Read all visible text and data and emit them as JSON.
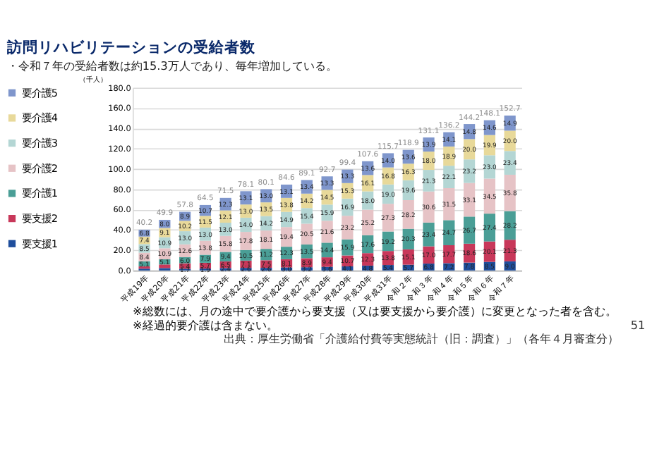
{
  "chart_data": {
    "type": "bar",
    "stacked": true,
    "title": "訪問リハビリテーションの受給者数",
    "subtitle": "・令和７年の受給者数は約15.3万人であり、毎年増加している。",
    "ylabel": "（千人）",
    "categories": [
      "平成19年",
      "平成20年",
      "平成21年",
      "平成22年",
      "平成23年",
      "平成24年",
      "平成25年",
      "平成26年",
      "平成27年",
      "平成28年",
      "平成29年",
      "平成30年",
      "平成31年",
      "令和２年",
      "令和３年",
      "令和４年",
      "令和５年",
      "令和６年",
      "令和７年"
    ],
    "series": [
      {
        "name": "要支援1",
        "color": "#1f4e9c",
        "values": [
          1.8,
          2.4,
          1.7,
          1.9,
          2.4,
          2.6,
          2.6,
          3.0,
          3.2,
          3.6,
          4.1,
          4.8,
          5.4,
          5.7,
          6.8,
          7.2,
          7.8,
          8.5,
          9.0
        ],
        "value_labels": [
          null,
          null,
          "1.7",
          "1.9",
          "2.4",
          "2.6",
          "2.6",
          "3.0",
          "3.2",
          "3.6",
          "4.1",
          "4.8",
          "5.4",
          "5.7",
          "6.8",
          "7.2",
          "7.8",
          "8.5",
          "9.0"
        ]
      },
      {
        "name": "要支援2",
        "color": "#c8385a",
        "values": [
          2.2,
          3.5,
          5.4,
          5.7,
          6.5,
          7.1,
          7.5,
          8.1,
          8.9,
          9.4,
          10.7,
          12.3,
          13.8,
          15.1,
          17.0,
          17.7,
          18.6,
          20.1,
          21.3
        ],
        "value_labels": [
          null,
          null,
          "5.4",
          "5.7",
          "6.5",
          "7.1",
          "7.5",
          "8.1",
          "8.9",
          "9.4",
          "10.7",
          "12.3",
          "13.8",
          "15.1",
          "17.0",
          "17.7",
          "18.6",
          "20.1",
          "21.3"
        ]
      },
      {
        "name": "要介護1",
        "color": "#4a9e96",
        "values": [
          5.1,
          5.1,
          6.0,
          7.9,
          9.4,
          10.5,
          11.2,
          12.3,
          13.5,
          14.4,
          15.9,
          17.6,
          19.2,
          20.3,
          23.4,
          24.7,
          26.7,
          27.4,
          28.2
        ],
        "value_labels": [
          "5.1",
          "5.1",
          "6.0",
          "7.9",
          "9.4",
          "10.5",
          "11.2",
          "12.3",
          "13.5",
          "14.4",
          "15.9",
          "17.6",
          "19.2",
          "20.3",
          "23.4",
          "24.7",
          "26.7",
          "27.4",
          "28.2"
        ]
      },
      {
        "name": "要介護2",
        "color": "#e6c3c6",
        "values": [
          8.4,
          10.9,
          12.6,
          13.8,
          15.8,
          17.8,
          18.1,
          19.4,
          20.5,
          21.6,
          23.2,
          25.2,
          27.3,
          28.2,
          30.6,
          31.5,
          33.1,
          34.5,
          35.8
        ],
        "value_labels": [
          "8.4",
          "10.9",
          "12.6",
          "13.8",
          "15.8",
          "17.8",
          "18.1",
          "19.4",
          "20.5",
          "21.6",
          "23.2",
          "25.2",
          "27.3",
          "28.2",
          "30.6",
          "31.5",
          "33.1",
          "34.5",
          "35.8"
        ]
      },
      {
        "name": "要介護3",
        "color": "#b4d6d4",
        "values": [
          8.5,
          10.9,
          13.0,
          13.0,
          13.0,
          14.0,
          14.2,
          14.9,
          15.4,
          15.9,
          16.9,
          18.0,
          19.0,
          19.6,
          21.3,
          22.1,
          23.2,
          23.0,
          23.4
        ],
        "value_labels": [
          "8.5",
          "10.9",
          "13.0",
          "13.0",
          "13.0",
          "14.0",
          "14.2",
          "14.9",
          "15.4",
          "15.9",
          "16.9",
          "18.0",
          "19.0",
          "19.6",
          "21.3",
          "22.1",
          "23.2",
          "23.0",
          "23.4"
        ]
      },
      {
        "name": "要介護4",
        "color": "#e8d99a",
        "values": [
          7.4,
          9.1,
          10.2,
          11.5,
          12.1,
          13.0,
          13.5,
          13.8,
          14.2,
          14.5,
          15.3,
          16.1,
          16.8,
          16.3,
          18.0,
          18.9,
          20.0,
          19.9,
          20.0
        ],
        "value_labels": [
          "7.4",
          "9.1",
          "10.2",
          "11.5",
          "12.1",
          "13.0",
          "13.5",
          "13.8",
          "14.2",
          "14.5",
          "15.3",
          "16.1",
          "16.8",
          "16.3",
          "18.0",
          "18.9",
          "20.0",
          "19.9",
          "20.0"
        ]
      },
      {
        "name": "要介護5",
        "color": "#7f96cc",
        "values": [
          6.8,
          8.0,
          8.9,
          10.7,
          12.3,
          13.1,
          13.0,
          13.1,
          13.4,
          13.3,
          13.3,
          13.6,
          14.0,
          13.6,
          13.9,
          14.1,
          14.8,
          14.6,
          14.9
        ],
        "value_labels": [
          "6.8",
          "8.0",
          "8.9",
          "10.7",
          "12.3",
          "13.1",
          "13.0",
          "13.1",
          "13.4",
          "13.3",
          "13.3",
          "13.6",
          "14.0",
          "13.6",
          "13.9",
          "14.1",
          "14.8",
          "14.6",
          "14.9"
        ]
      }
    ],
    "totals": [
      "40.2",
      "49.9",
      "57.8",
      "64.5",
      "71.5",
      "78.1",
      "80.1",
      "84.6",
      "89.1",
      "92.7",
      "99.4",
      "107.6",
      "115.7",
      "118.9",
      "131.1",
      "136.2",
      "144.2",
      "148.1",
      "152.7"
    ],
    "ylim": [
      0,
      180
    ],
    "yticks": [
      {
        "value": 0,
        "label": "0.0"
      },
      {
        "value": 20,
        "label": "20.0"
      },
      {
        "value": 40,
        "label": "40.0"
      },
      {
        "value": 60,
        "label": "60.0"
      },
      {
        "value": 80,
        "label": "80.0"
      },
      {
        "value": 100,
        "label": "100.0"
      },
      {
        "value": 120,
        "label": "120.0"
      },
      {
        "value": 140,
        "label": "140.0"
      },
      {
        "value": 160,
        "label": "160.0"
      },
      {
        "value": 180,
        "label": "180.0"
      }
    ],
    "grid": "y",
    "legend": "left",
    "annotations": [
      "※総数には、月の途中で要介護から要支援（又は要支援から要介護）に変更となった者を含む。",
      "※経過的要介護は含まない。",
      "出典：厚生労働省「介護給付費等実態統計（旧：調査）」（各年４月審査分）",
      "51"
    ]
  }
}
